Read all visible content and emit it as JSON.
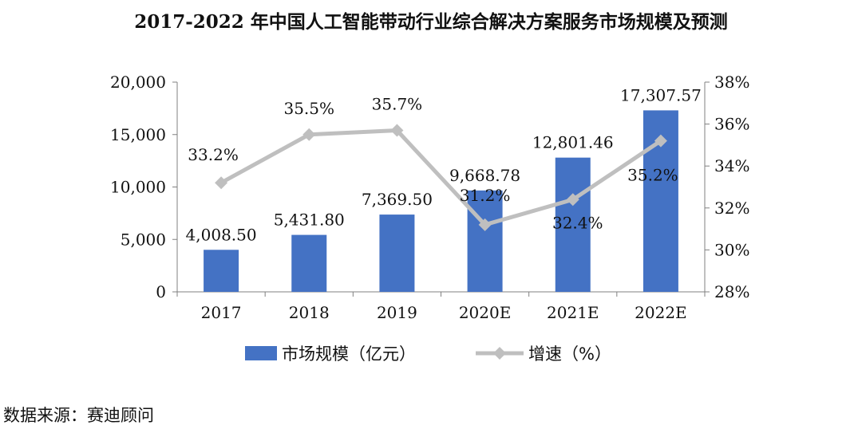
{
  "title": "2017-2022 年中国人工智能带动行业综合解决方案服务市场规模及预测",
  "source": "数据来源：赛迪顾问",
  "colors": {
    "bar": "#4472C4",
    "line": "#BFBFBF",
    "axis": "#808080"
  },
  "chart_data": {
    "type": "bar",
    "categories": [
      "2017",
      "2018",
      "2019",
      "2020E",
      "2021E",
      "2022E"
    ],
    "series": [
      {
        "name": "市场规模（亿元）",
        "type": "bar",
        "axis": "left",
        "values": [
          4008.5,
          5431.8,
          7369.5,
          9668.78,
          12801.46,
          17307.57
        ],
        "labels": [
          "4,008.50",
          "5,431.80",
          "7,369.50",
          "9,668.78",
          "12,801.46",
          "17,307.57"
        ]
      },
      {
        "name": "增速（%）",
        "type": "line",
        "axis": "right",
        "values": [
          33.2,
          35.5,
          35.7,
          31.2,
          32.4,
          35.2
        ],
        "labels": [
          "33.2%",
          "35.5%",
          "35.7%",
          "31.2%",
          "32.4%",
          "35.2%"
        ]
      }
    ],
    "y_left": {
      "range": [
        0,
        20000
      ],
      "ticks": [
        "0",
        "5,000",
        "10,000",
        "15,000",
        "20,000"
      ]
    },
    "y_right": {
      "range": [
        28,
        38
      ],
      "ticks": [
        "28%",
        "30%",
        "32%",
        "34%",
        "36%",
        "38%"
      ]
    },
    "grid": false,
    "legend": "bottom"
  }
}
